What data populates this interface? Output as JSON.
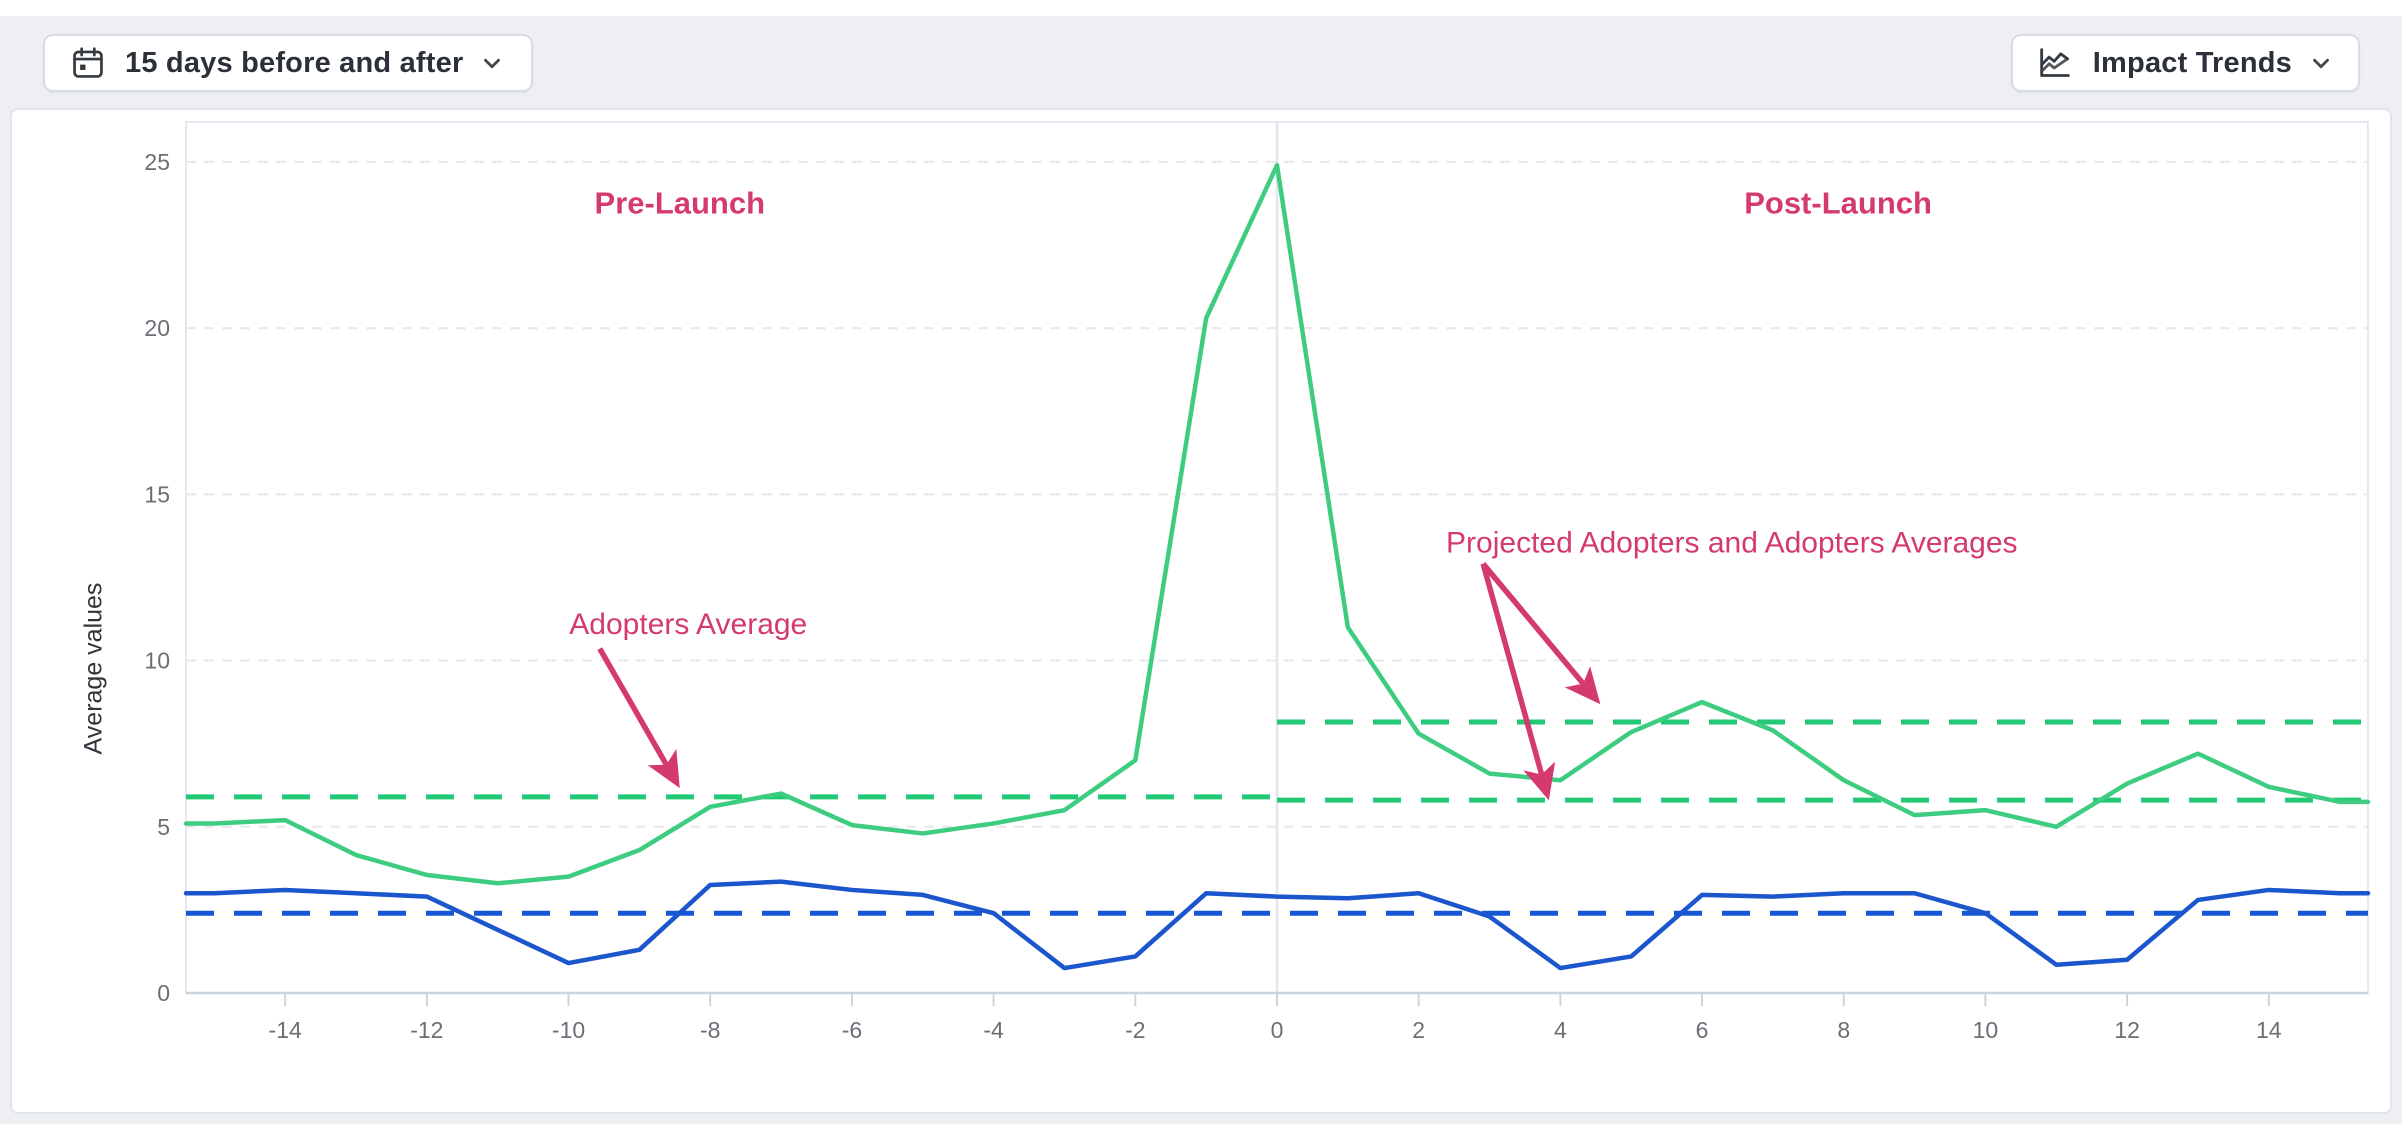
{
  "toolbar": {
    "date_range_button": {
      "label": "15 days before and after",
      "icon": "calendar-icon"
    },
    "trends_button": {
      "label": "Impact Trends",
      "icon": "line-chart-icon"
    }
  },
  "chart_data": {
    "type": "line",
    "title": "",
    "xlabel": "",
    "ylabel": "Average values",
    "xlim": [
      -15.4,
      15.4
    ],
    "ylim": [
      0,
      26.2
    ],
    "x_ticks": [
      -14,
      -12,
      -10,
      -8,
      -6,
      -4,
      -2,
      0,
      2,
      4,
      6,
      8,
      10,
      12,
      14
    ],
    "y_ticks": [
      0,
      5,
      10,
      15,
      20,
      25
    ],
    "grid": "dashed-horizontal",
    "vertical_line_x": 0,
    "x": [
      -15,
      -14,
      -13,
      -12,
      -11,
      -10,
      -9,
      -8,
      -7,
      -6,
      -5,
      -4,
      -3,
      -2,
      -1,
      0,
      1,
      2,
      3,
      4,
      5,
      6,
      7,
      8,
      9,
      10,
      11,
      12,
      13,
      14,
      15
    ],
    "series": [
      {
        "id": "adopters-green-line",
        "color": "#3ECD80",
        "values": [
          5.1,
          5.2,
          4.15,
          3.55,
          3.3,
          3.5,
          4.3,
          5.6,
          6.0,
          5.05,
          4.8,
          5.1,
          5.5,
          7.0,
          20.3,
          24.9,
          11.0,
          7.8,
          6.6,
          6.4,
          7.85,
          8.75,
          7.9,
          6.4,
          5.35,
          5.5,
          5.0,
          6.3,
          7.2,
          6.2,
          5.75
        ]
      },
      {
        "id": "blue-line",
        "color": "#1B56CC",
        "values": [
          3.0,
          3.1,
          3.0,
          2.9,
          1.9,
          0.9,
          1.3,
          3.25,
          3.35,
          3.1,
          2.95,
          2.4,
          0.75,
          1.1,
          3.0,
          2.9,
          2.85,
          3.0,
          2.3,
          0.75,
          1.1,
          2.95,
          2.9,
          3.0,
          3.0,
          2.4,
          0.85,
          1.0,
          2.8,
          3.1,
          3.0
        ]
      }
    ],
    "reference_lines": [
      {
        "id": "adopters-average-pre-launch",
        "value": 5.9,
        "x_from": -15.4,
        "x_to": 0,
        "color": "#22C873",
        "style": "dashed"
      },
      {
        "id": "adopters-average-post-launch",
        "value": 5.8,
        "x_from": 0,
        "x_to": 15.4,
        "color": "#22C873",
        "style": "dashed"
      },
      {
        "id": "projected-adopters-average",
        "value": 8.15,
        "x_from": 0,
        "x_to": 15.4,
        "color": "#22C873",
        "style": "dashed"
      },
      {
        "id": "blue-average",
        "value": 2.4,
        "x_from": -15.4,
        "x_to": 15.4,
        "color": "#1458D6",
        "style": "dashed"
      }
    ],
    "annotations": [
      {
        "id": "pre-launch-label",
        "text": "Pre-Launch",
        "x": -8.43,
        "y": 23.45,
        "bold": true,
        "color": "#D43A6E",
        "size": 31
      },
      {
        "id": "post-launch-label",
        "text": "Post-Launch",
        "x": 7.92,
        "y": 23.45,
        "bold": true,
        "color": "#D43A6E",
        "size": 31
      },
      {
        "id": "adopters-average-label",
        "text": "Adopters Average",
        "x": -8.31,
        "y": 10.8,
        "bold": false,
        "color": "#D43A6E",
        "size": 30
      },
      {
        "id": "projected-adopters-label",
        "text": "Projected Adopters and Adopters Averages",
        "x": 6.42,
        "y": 13.25,
        "bold": false,
        "color": "#D43A6E",
        "size": 30
      }
    ],
    "arrows": [
      {
        "id": "adopters-average-arrow",
        "from": [
          -9.56,
          10.36
        ],
        "to": [
          -8.48,
          6.35
        ],
        "color": "#D43A6E"
      },
      {
        "id": "projected-average-arrow-1",
        "from": [
          2.91,
          12.91
        ],
        "to": [
          4.5,
          8.85
        ],
        "color": "#D43A6E"
      },
      {
        "id": "projected-average-arrow-2",
        "from": [
          2.91,
          12.91
        ],
        "to": [
          3.81,
          6.0
        ],
        "color": "#D43A6E"
      }
    ],
    "colors": {
      "grid": "#E7E8ED",
      "plot_border": "#E5E8F1",
      "x_axis": "#CCD3E1",
      "zero_vertical_line": "#E3E6EC",
      "tick_text": "#6A6E76"
    }
  }
}
